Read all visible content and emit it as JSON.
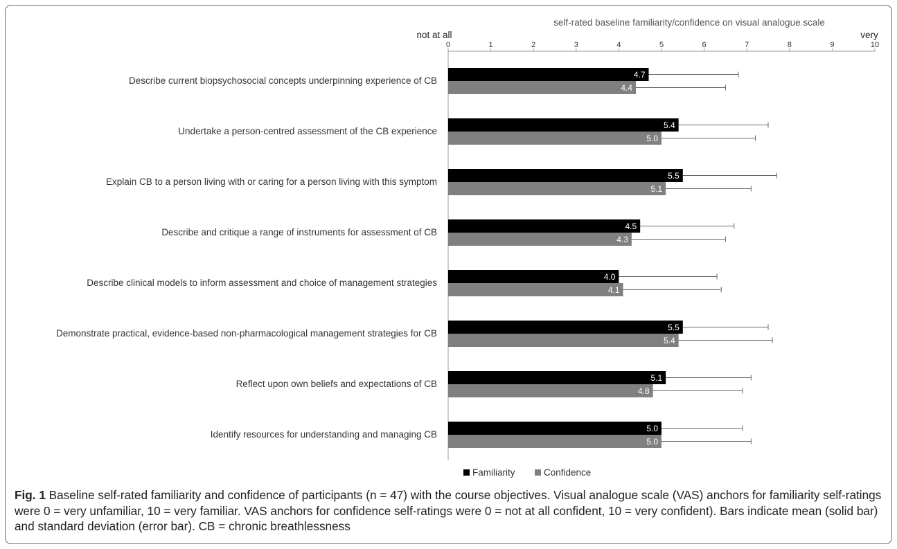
{
  "chart_data": {
    "type": "bar",
    "orientation": "horizontal",
    "title": "self-rated baseline familiarity/confidence on visual analogue scale",
    "axis_anchor_low": "not at all",
    "axis_anchor_high": "very",
    "xlim": [
      0,
      10
    ],
    "xticks": [
      "0",
      "1",
      "2",
      "3",
      "4",
      "5",
      "6",
      "7",
      "8",
      "9",
      "10"
    ],
    "grid": false,
    "legend_position": "bottom-center",
    "categories": [
      "Describe current biopsychosocial concepts underpinning experience of CB",
      "Undertake a person-centred assessment of the CB experience",
      "Explain CB to a person living with or caring for a person living with this symptom",
      "Describe and critique a range of instruments  for assessment of CB",
      "Describe clinical models to inform assessment and choice of management strategies",
      "Demonstrate practical, evidence-based non-pharmacological management strategies for CB",
      "Reflect upon own beliefs and expectations of CB",
      "Identify resources for understanding and managing CB"
    ],
    "series": [
      {
        "name": "Familiarity",
        "color": "#000000",
        "values": [
          4.7,
          5.4,
          5.5,
          4.5,
          4.0,
          5.5,
          5.1,
          5.0
        ],
        "labels": [
          "4.7",
          "5.4",
          "5.5",
          "4.5",
          "4.0",
          "5.5",
          "5.1",
          "5.0"
        ],
        "sd": [
          2.1,
          2.1,
          2.2,
          2.2,
          2.3,
          2.0,
          2.0,
          1.9
        ]
      },
      {
        "name": "Confidence",
        "color": "#808080",
        "values": [
          4.4,
          5.0,
          5.1,
          4.3,
          4.1,
          5.4,
          4.8,
          5.0
        ],
        "labels": [
          "4.4",
          "5.0",
          "5.1",
          "4.3",
          "4.1",
          "5.4",
          "4.8",
          "5.0"
        ],
        "sd": [
          2.1,
          2.2,
          2.0,
          2.2,
          2.3,
          2.2,
          2.1,
          2.1
        ]
      }
    ]
  },
  "caption": {
    "label": "Fig. 1",
    "text": " Baseline self-rated familiarity and confidence of participants (n = 47) with the course objectives. Visual analogue scale (VAS) anchors for familiarity self-ratings were 0 = very unfamiliar, 10 = very familiar. VAS anchors for confidence self-ratings were 0 = not at all confident, 10 = very confident). Bars indicate mean (solid bar) and standard deviation (error bar). CB = chronic breathlessness"
  }
}
